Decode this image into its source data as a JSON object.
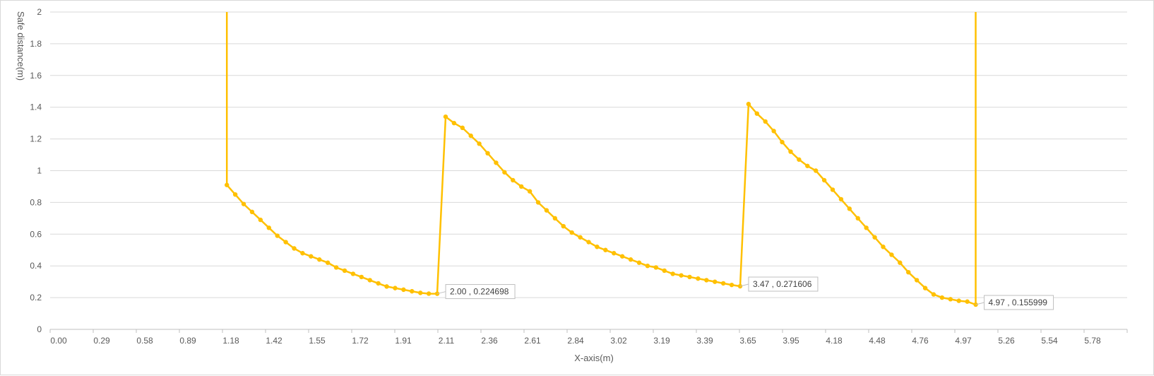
{
  "chart_data": {
    "type": "line",
    "xlabel": "X-axis(m)",
    "ylabel": "Safe distance(m)",
    "ylim": [
      0,
      2
    ],
    "y_ticks": [
      "0",
      "0.2",
      "0.4",
      "0.6",
      "0.8",
      "1",
      "1.2",
      "1.4",
      "1.6",
      "1.8",
      "2"
    ],
    "x_tick_labels": [
      "0.00",
      "0.29",
      "0.58",
      "0.89",
      "1.18",
      "1.42",
      "1.55",
      "1.72",
      "1.91",
      "2.11",
      "2.36",
      "2.61",
      "2.84",
      "3.02",
      "3.19",
      "3.39",
      "3.65",
      "3.95",
      "4.18",
      "4.48",
      "4.76",
      "4.97",
      "5.26",
      "5.54",
      "5.78"
    ],
    "grid": "horizontal",
    "legend": "none",
    "series_color": "#FFC000",
    "segments": [
      {
        "x": [
          1.05,
          1.05
        ],
        "y": [
          2.0,
          0.91
        ],
        "markers": false
      },
      {
        "x": [
          1.05,
          1.1,
          1.15,
          1.2,
          1.25,
          1.3,
          1.35,
          1.4,
          1.45,
          1.5,
          1.55,
          1.6,
          1.65,
          1.7,
          1.75,
          1.8,
          1.85,
          1.9,
          1.95,
          2.0,
          2.05,
          2.1,
          2.15,
          2.2,
          2.25,
          2.3,
          2.35,
          2.4,
          2.45,
          2.5,
          2.55,
          2.6,
          2.65,
          2.7,
          2.75,
          2.8,
          2.85,
          2.9,
          2.95,
          3.0,
          3.05
        ],
        "y": [
          0.91,
          0.85,
          0.79,
          0.74,
          0.69,
          0.64,
          0.59,
          0.55,
          0.51,
          0.48,
          0.46,
          0.44,
          0.42,
          0.39,
          0.37,
          0.35,
          0.33,
          0.31,
          0.29,
          0.27,
          0.26,
          0.25,
          0.24,
          0.23,
          0.225,
          0.224698,
          1.34,
          1.3,
          1.27,
          1.22,
          1.17,
          1.11,
          1.05,
          0.99,
          0.94,
          0.9,
          0.87,
          0.8,
          0.75,
          0.7,
          0.65
        ],
        "markers": true
      },
      {
        "x": [
          3.1,
          3.15,
          3.2,
          3.25,
          3.3,
          3.35,
          3.4,
          3.45,
          3.5,
          3.55,
          3.6,
          3.65,
          3.7,
          3.75,
          3.8,
          3.85,
          3.9,
          3.95,
          4.0,
          4.05,
          4.1,
          4.15,
          4.2,
          4.25,
          4.3,
          4.35,
          4.4,
          4.45,
          4.5,
          4.55,
          4.6,
          4.65,
          4.7,
          4.75,
          4.8,
          4.85,
          4.9,
          4.95,
          5.0,
          5.05,
          5.1,
          5.15,
          5.2,
          5.25,
          5.3,
          5.35
        ],
        "y": [
          0.61,
          0.58,
          0.55,
          0.52,
          0.5,
          0.48,
          0.46,
          0.44,
          0.42,
          0.4,
          0.39,
          0.37,
          0.35,
          0.34,
          0.33,
          0.32,
          0.31,
          0.3,
          0.29,
          0.28,
          0.271606,
          1.42,
          1.36,
          1.31,
          1.25,
          1.18,
          1.12,
          1.07,
          1.03,
          1.0,
          0.94,
          0.88,
          0.82,
          0.76,
          0.7,
          0.64,
          0.58,
          0.52,
          0.47,
          0.42,
          0.36,
          0.31,
          0.26,
          0.22,
          0.2,
          0.19
        ],
        "markers": true
      },
      {
        "x": [
          5.4,
          5.45,
          5.5
        ],
        "y": [
          0.18,
          0.175,
          0.155999
        ],
        "markers": true
      },
      {
        "x": [
          5.5,
          5.5
        ],
        "y": [
          0.155999,
          2.0
        ],
        "markers": false
      }
    ],
    "annotations": [
      {
        "label": "2.00 , 0.224698",
        "x": 2.3,
        "y": 0.224698
      },
      {
        "label": "3.47 , 0.271606",
        "x": 4.1,
        "y": 0.271606
      },
      {
        "label": "4.97 , 0.155999",
        "x": 5.5,
        "y": 0.155999
      }
    ]
  }
}
